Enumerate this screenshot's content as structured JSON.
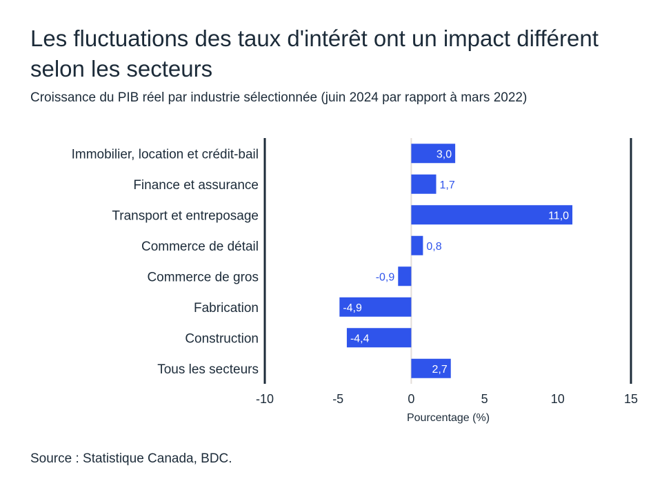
{
  "chart_data": {
    "type": "bar",
    "orientation": "horizontal",
    "title": "Les fluctuations des taux d'intérêt ont un impact différent selon les secteurs",
    "subtitle": "Croissance du PIB réel par industrie sélectionnée (juin 2024 par rapport à mars 2022)",
    "categories": [
      "Immobilier, location et crédit-bail",
      "Finance et assurance",
      "Transport et entreposage",
      "Commerce de détail",
      "Commerce de gros",
      "Fabrication",
      "Construction",
      "Tous les secteurs"
    ],
    "values": [
      3.0,
      1.7,
      11.0,
      0.8,
      -0.9,
      -4.9,
      -4.4,
      2.7
    ],
    "data_labels": [
      "3,0",
      "1,7",
      "11,0",
      "0,8",
      "-0,9",
      "-4,9",
      "-4,4",
      "2,7"
    ],
    "xlabel": "Pourcentage (%)",
    "ylabel": "",
    "xlim": [
      -10,
      15
    ],
    "xticks": [
      -10,
      -5,
      0,
      5,
      10,
      15
    ],
    "xtick_labels": [
      "-10",
      "-5",
      "0",
      "5",
      "10",
      "15"
    ],
    "grid": false,
    "legend": "none",
    "colors": {
      "bar": "#2f54eb",
      "text": "#1c2b39",
      "axis": "#1c2b39",
      "zero_line": "#e3ddd8"
    }
  },
  "source": "Source : Statistique Canada, BDC."
}
